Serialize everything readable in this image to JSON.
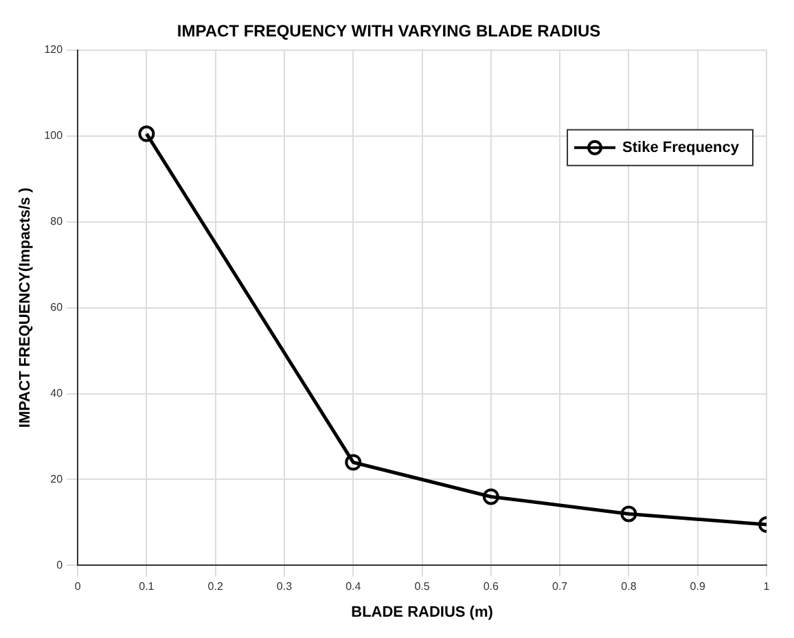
{
  "chart_data": {
    "type": "line",
    "title": "IMPACT FREQUENCY WITH VARYING BLADE RADIUS",
    "xlabel": "BLADE RADIUS (m)",
    "ylabel": "IMPACT FREQUENCY(Impacts/s )",
    "x": [
      0.1,
      0.4,
      0.6,
      0.8,
      1.0
    ],
    "series": [
      {
        "name": "Stike Frequency",
        "color": "#000000",
        "values": [
          100.5,
          24,
          16,
          12,
          9.5
        ]
      }
    ],
    "xlim": [
      0,
      1
    ],
    "xticks": [
      0,
      0.1,
      0.2,
      0.3,
      0.4,
      0.5,
      0.6,
      0.7,
      0.8,
      0.9,
      1
    ],
    "ylim": [
      0,
      120
    ],
    "yticks": [
      0,
      20,
      40,
      60,
      80,
      100,
      120
    ],
    "grid": true,
    "legend": "top right",
    "marker": "circle",
    "line_style": "solid"
  }
}
